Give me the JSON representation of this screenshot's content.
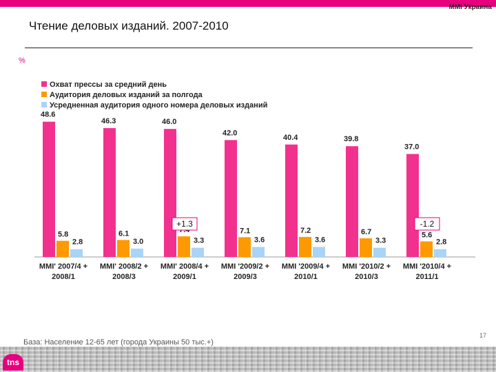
{
  "header": {
    "brand": "MMI Украина",
    "title": "Чтение деловых изданий. 2007-2010",
    "unit": "%"
  },
  "footer": {
    "base_note": "База: Население 12-65 лет (города Украины 50 тыс.+)",
    "page_number": "17",
    "logo_text": "tns"
  },
  "colors": {
    "accent": "#e6007e",
    "series": [
      "#f2318f",
      "#ff9900",
      "#a9d4f7"
    ]
  },
  "chart_data": {
    "type": "bar",
    "title": "Чтение деловых изданий. 2007-2010",
    "ylabel": "%",
    "ylim": [
      0,
      55
    ],
    "legend_position": "top-left",
    "categories": [
      [
        "MMI' 2007/4 +",
        "2008/1"
      ],
      [
        "MMI' 2008/2 +",
        "2008/3"
      ],
      [
        "MMI' 2008/4 +",
        "2009/1"
      ],
      [
        "MMI '2009/2 +",
        "2009/3"
      ],
      [
        "MMI '2009/4 +",
        "2010/1"
      ],
      [
        "MMI '2010/2 +",
        "2010/3"
      ],
      [
        "MMI '2010/4 +",
        "2011/1"
      ]
    ],
    "series": [
      {
        "name": "Охват прессы за средний день",
        "values": [
          48.6,
          46.3,
          46.0,
          42.0,
          40.4,
          39.8,
          37.0
        ]
      },
      {
        "name": "Аудитория деловых изданий за полгода",
        "values": [
          5.8,
          6.1,
          7.4,
          7.1,
          7.2,
          6.7,
          5.6
        ]
      },
      {
        "name": "Усредненная аудитория одного номера деловых изданий",
        "values": [
          2.8,
          3.0,
          3.3,
          3.6,
          3.6,
          3.3,
          2.8
        ]
      }
    ],
    "annotations": [
      {
        "category_index": 2,
        "text": "+1.3"
      },
      {
        "category_index": 6,
        "text": "-1.2"
      }
    ]
  }
}
